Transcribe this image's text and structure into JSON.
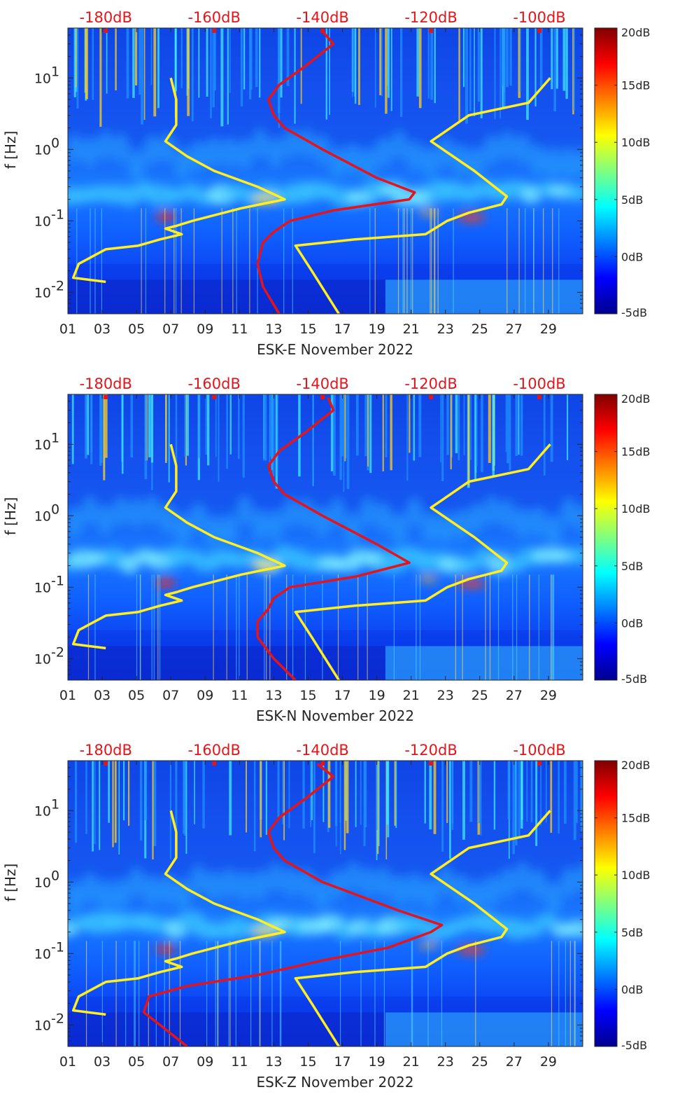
{
  "chart_data": [
    {
      "type": "heatmap",
      "xlabel": "ESK-E November 2022",
      "ylabel": "f [Hz]",
      "x_tick_labels": [
        "01",
        "03",
        "05",
        "07",
        "09",
        "11",
        "13",
        "15",
        "17",
        "19",
        "21",
        "23",
        "25",
        "27",
        "29"
      ],
      "x_ticks": [
        1,
        3,
        5,
        7,
        9,
        11,
        13,
        15,
        17,
        19,
        21,
        23,
        25,
        27,
        29
      ],
      "xlim": [
        1,
        31
      ],
      "y_scale": "log",
      "ylim": [
        0.005,
        50
      ],
      "y_tick_labels": [
        "10^-2",
        "10^-1",
        "10^0",
        "10^1"
      ],
      "y_ticks": [
        0.01,
        0.1,
        1,
        10
      ],
      "top_axis_tick_labels": [
        "-180dB",
        "-160dB",
        "-140dB",
        "-120dB",
        "-100dB"
      ],
      "top_axis_ticks": [
        -180,
        -160,
        -140,
        -120,
        -100
      ],
      "top_axis_range": [
        -187,
        -92
      ],
      "colorbar": {
        "tick_labels": [
          "20dB",
          "15dB",
          "10dB",
          "5dB",
          "0dB",
          "-5dB"
        ],
        "range": [
          -5,
          20
        ],
        "colors": [
          "#00008f",
          "#0000ff",
          "#00ffff",
          "#ffff00",
          "#ff0000",
          "#800000"
        ]
      },
      "series": [
        {
          "color": "#ffee22",
          "points": [
            [
              0.014,
              -180
            ],
            [
              0.016,
              -186
            ],
            [
              0.025,
              -185
            ],
            [
              0.04,
              -180
            ],
            [
              0.045,
              -174
            ],
            [
              0.055,
              -170
            ],
            [
              0.065,
              -166
            ],
            [
              0.078,
              -169
            ],
            [
              0.085,
              -167
            ],
            [
              0.1,
              -164
            ],
            [
              0.15,
              -155
            ],
            [
              0.2,
              -147
            ],
            [
              0.3,
              -152
            ],
            [
              0.5,
              -160
            ],
            [
              0.8,
              -165
            ],
            [
              1.3,
              -169
            ],
            [
              2.2,
              -167
            ],
            [
              5,
              -167
            ],
            [
              10,
              -168
            ]
          ]
        },
        {
          "color": "#ffee22",
          "points": [
            [
              0.005,
              -137
            ],
            [
              0.02,
              -142
            ],
            [
              0.045,
              -145
            ],
            [
              0.055,
              -134
            ],
            [
              0.065,
              -121
            ],
            [
              0.1,
              -117
            ],
            [
              0.13,
              -113
            ],
            [
              0.17,
              -107
            ],
            [
              0.22,
              -106
            ],
            [
              0.5,
              -112
            ],
            [
              1.3,
              -120
            ],
            [
              3,
              -113
            ],
            [
              4.5,
              -102
            ],
            [
              10,
              -98
            ]
          ]
        },
        {
          "color": "#e3151a",
          "points": [
            [
              0.005,
              -148
            ],
            [
              0.012,
              -151
            ],
            [
              0.025,
              -152
            ],
            [
              0.05,
              -151
            ],
            [
              0.07,
              -149
            ],
            [
              0.1,
              -146
            ],
            [
              0.14,
              -138
            ],
            [
              0.2,
              -124
            ],
            [
              0.25,
              -123
            ],
            [
              0.4,
              -130
            ],
            [
              1,
              -140
            ],
            [
              2,
              -147
            ],
            [
              3,
              -149
            ],
            [
              5,
              -150
            ],
            [
              8,
              -148
            ],
            [
              15,
              -143
            ],
            [
              30,
              -138
            ],
            [
              45,
              -140
            ]
          ]
        }
      ]
    },
    {
      "type": "heatmap",
      "xlabel": "ESK-N November 2022",
      "ylabel": "f [Hz]",
      "x_tick_labels": [
        "01",
        "03",
        "05",
        "07",
        "09",
        "11",
        "13",
        "15",
        "17",
        "19",
        "21",
        "23",
        "25",
        "27",
        "29"
      ],
      "x_ticks": [
        1,
        3,
        5,
        7,
        9,
        11,
        13,
        15,
        17,
        19,
        21,
        23,
        25,
        27,
        29
      ],
      "xlim": [
        1,
        31
      ],
      "y_scale": "log",
      "ylim": [
        0.005,
        50
      ],
      "y_tick_labels": [
        "10^-2",
        "10^-1",
        "10^0",
        "10^1"
      ],
      "y_ticks": [
        0.01,
        0.1,
        1,
        10
      ],
      "top_axis_tick_labels": [
        "-180dB",
        "-160dB",
        "-140dB",
        "-120dB",
        "-100dB"
      ],
      "top_axis_ticks": [
        -180,
        -160,
        -140,
        -120,
        -100
      ],
      "top_axis_range": [
        -187,
        -92
      ],
      "colorbar": {
        "tick_labels": [
          "20dB",
          "15dB",
          "10dB",
          "5dB",
          "0dB",
          "-5dB"
        ],
        "range": [
          -5,
          20
        ],
        "colors": [
          "#00008f",
          "#0000ff",
          "#00ffff",
          "#ffff00",
          "#ff0000",
          "#800000"
        ]
      },
      "series": [
        {
          "color": "#ffee22",
          "points": [
            [
              0.014,
              -180
            ],
            [
              0.016,
              -186
            ],
            [
              0.025,
              -185
            ],
            [
              0.04,
              -180
            ],
            [
              0.045,
              -174
            ],
            [
              0.055,
              -170
            ],
            [
              0.065,
              -166
            ],
            [
              0.078,
              -169
            ],
            [
              0.085,
              -167
            ],
            [
              0.1,
              -164
            ],
            [
              0.15,
              -155
            ],
            [
              0.2,
              -147
            ],
            [
              0.3,
              -152
            ],
            [
              0.5,
              -160
            ],
            [
              0.8,
              -165
            ],
            [
              1.3,
              -169
            ],
            [
              2.2,
              -167
            ],
            [
              5,
              -167
            ],
            [
              10,
              -168
            ]
          ]
        },
        {
          "color": "#ffee22",
          "points": [
            [
              0.005,
              -137
            ],
            [
              0.02,
              -142
            ],
            [
              0.045,
              -145
            ],
            [
              0.055,
              -134
            ],
            [
              0.065,
              -121
            ],
            [
              0.1,
              -117
            ],
            [
              0.13,
              -113
            ],
            [
              0.17,
              -107
            ],
            [
              0.22,
              -106
            ],
            [
              0.5,
              -112
            ],
            [
              1.3,
              -120
            ],
            [
              3,
              -113
            ],
            [
              4.5,
              -102
            ],
            [
              10,
              -98
            ]
          ]
        },
        {
          "color": "#e3151a",
          "points": [
            [
              0.005,
              -145
            ],
            [
              0.01,
              -149
            ],
            [
              0.02,
              -152
            ],
            [
              0.033,
              -152
            ],
            [
              0.05,
              -150
            ],
            [
              0.07,
              -149
            ],
            [
              0.1,
              -146
            ],
            [
              0.14,
              -134
            ],
            [
              0.22,
              -124
            ],
            [
              0.4,
              -130
            ],
            [
              1,
              -140
            ],
            [
              2,
              -147
            ],
            [
              3,
              -149
            ],
            [
              5,
              -150
            ],
            [
              8,
              -148
            ],
            [
              15,
              -143
            ],
            [
              30,
              -138
            ],
            [
              45,
              -139
            ]
          ]
        }
      ]
    },
    {
      "type": "heatmap",
      "xlabel": "ESK-Z November 2022",
      "ylabel": "f [Hz]",
      "x_tick_labels": [
        "01",
        "03",
        "05",
        "07",
        "09",
        "11",
        "13",
        "15",
        "17",
        "19",
        "21",
        "23",
        "25",
        "27",
        "29"
      ],
      "x_ticks": [
        1,
        3,
        5,
        7,
        9,
        11,
        13,
        15,
        17,
        19,
        21,
        23,
        25,
        27,
        29
      ],
      "xlim": [
        1,
        31
      ],
      "y_scale": "log",
      "ylim": [
        0.005,
        50
      ],
      "y_tick_labels": [
        "10^-2",
        "10^-1",
        "10^0",
        "10^1"
      ],
      "y_ticks": [
        0.01,
        0.1,
        1,
        10
      ],
      "top_axis_tick_labels": [
        "-180dB",
        "-160dB",
        "-140dB",
        "-120dB",
        "-100dB"
      ],
      "top_axis_ticks": [
        -180,
        -160,
        -140,
        -120,
        -100
      ],
      "top_axis_range": [
        -187,
        -92
      ],
      "colorbar": {
        "tick_labels": [
          "20dB",
          "15dB",
          "10dB",
          "5dB",
          "0dB",
          "-5dB"
        ],
        "range": [
          -5,
          20
        ],
        "colors": [
          "#00008f",
          "#0000ff",
          "#00ffff",
          "#ffff00",
          "#ff0000",
          "#800000"
        ]
      },
      "series": [
        {
          "color": "#ffee22",
          "points": [
            [
              0.014,
              -180
            ],
            [
              0.016,
              -186
            ],
            [
              0.025,
              -185
            ],
            [
              0.04,
              -180
            ],
            [
              0.045,
              -174
            ],
            [
              0.055,
              -170
            ],
            [
              0.065,
              -166
            ],
            [
              0.078,
              -169
            ],
            [
              0.085,
              -167
            ],
            [
              0.1,
              -164
            ],
            [
              0.15,
              -155
            ],
            [
              0.2,
              -147
            ],
            [
              0.3,
              -152
            ],
            [
              0.5,
              -160
            ],
            [
              0.8,
              -165
            ],
            [
              1.3,
              -169
            ],
            [
              2.2,
              -167
            ],
            [
              5,
              -167
            ],
            [
              10,
              -168
            ]
          ]
        },
        {
          "color": "#ffee22",
          "points": [
            [
              0.005,
              -137
            ],
            [
              0.02,
              -142
            ],
            [
              0.045,
              -145
            ],
            [
              0.055,
              -134
            ],
            [
              0.065,
              -121
            ],
            [
              0.1,
              -117
            ],
            [
              0.13,
              -113
            ],
            [
              0.17,
              -107
            ],
            [
              0.22,
              -106
            ],
            [
              0.5,
              -112
            ],
            [
              1.3,
              -120
            ],
            [
              3,
              -113
            ],
            [
              4.5,
              -102
            ],
            [
              10,
              -98
            ]
          ]
        },
        {
          "color": "#e3151a",
          "points": [
            [
              0.005,
              -165
            ],
            [
              0.01,
              -170
            ],
            [
              0.015,
              -173
            ],
            [
              0.025,
              -172
            ],
            [
              0.035,
              -165
            ],
            [
              0.05,
              -152
            ],
            [
              0.08,
              -140
            ],
            [
              0.12,
              -128
            ],
            [
              0.2,
              -120
            ],
            [
              0.25,
              -118
            ],
            [
              0.4,
              -126
            ],
            [
              1,
              -140
            ],
            [
              2,
              -147
            ],
            [
              3,
              -149
            ],
            [
              5,
              -150
            ],
            [
              8,
              -148
            ],
            [
              15,
              -143
            ],
            [
              30,
              -138
            ],
            [
              45,
              -141
            ]
          ]
        }
      ]
    }
  ]
}
